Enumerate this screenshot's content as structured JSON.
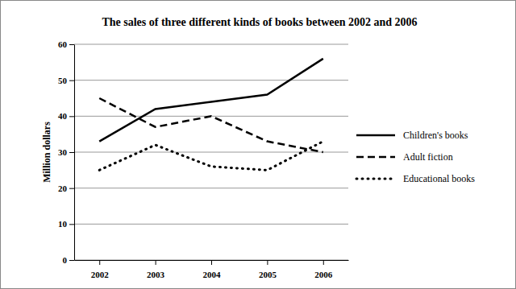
{
  "chart_data": {
    "type": "line",
    "title": "The sales of three different kinds of books between 2002 and 2006",
    "y_label": "Million dollars",
    "categories": [
      "2002",
      "2003",
      "2004",
      "2005",
      "2006"
    ],
    "series": [
      {
        "name": "Children's books",
        "color": "#000000",
        "line_style": "solid",
        "values": [
          33,
          42,
          44,
          46,
          56
        ]
      },
      {
        "name": "Adult fiction",
        "color": "#000000",
        "line_style": "dashed",
        "values": [
          45,
          37,
          40,
          33,
          30
        ]
      },
      {
        "name": "Educational books",
        "color": "#000000",
        "line_style": "dotted",
        "values": [
          25,
          32,
          26,
          25,
          33
        ]
      }
    ],
    "ylim": [
      0,
      60
    ],
    "yticks": [
      0,
      10,
      20,
      30,
      40,
      50,
      60
    ],
    "grid": true,
    "legend": "right"
  }
}
